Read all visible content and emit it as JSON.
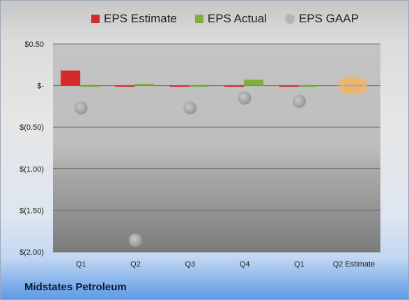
{
  "company": "Midstates Petroleum",
  "colors": {
    "estimate": "#d42a2a",
    "actual": "#7fae3c",
    "gaap": "#b4b4b4",
    "highlight": "#f6b35a",
    "q2_estimate_bar": "#8ab0dc"
  },
  "chart_data": {
    "type": "bar",
    "categories": [
      "Q1",
      "Q2",
      "Q3",
      "Q4",
      "Q1",
      "Q2 Estimate"
    ],
    "series": [
      {
        "name": "EPS Estimate",
        "type": "bar",
        "values": [
          0.18,
          -0.01,
          -0.01,
          -0.01,
          -0.01,
          null
        ]
      },
      {
        "name": "EPS Actual",
        "type": "bar",
        "values": [
          -0.005,
          0.02,
          -0.005,
          0.07,
          -0.01,
          0.01
        ]
      },
      {
        "name": "EPS GAAP",
        "type": "scatter",
        "values": [
          -0.27,
          -1.86,
          -0.27,
          -0.15,
          -0.19,
          null
        ]
      }
    ],
    "yticks": [
      0.5,
      0,
      -0.5,
      -1.0,
      -1.5,
      -2.0
    ],
    "ytick_labels": [
      "$0.50",
      "$-",
      "$(0.50)",
      "$(1.00)",
      "$(1.50)",
      "$(2.00)"
    ],
    "ylim": [
      -2.0,
      0.5
    ],
    "grid": true,
    "legend_position": "top",
    "highlighted_category": "Q2 Estimate"
  }
}
